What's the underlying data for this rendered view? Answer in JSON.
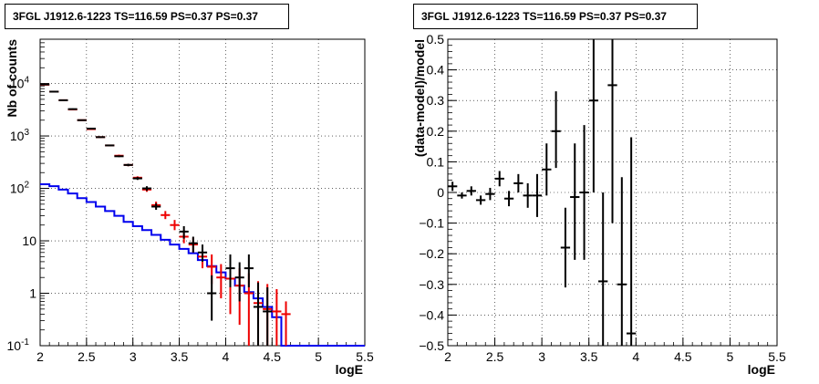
{
  "panels": [
    {
      "title": "3FGL J1912.6-1223 TS=116.59 PS=0.37 PS=0.37"
    },
    {
      "title": "3FGL J1912.6-1223 TS=116.59 PS=0.37 PS=0.37"
    }
  ],
  "chart_data": [
    {
      "type": "line",
      "title": "3FGL J1912.6-1223 TS=116.59 PS=0.37 PS=0.37",
      "xlabel": "logE",
      "ylabel": "Nb of counts",
      "xlim": [
        2,
        5.5
      ],
      "ylim": [
        0.1,
        70000
      ],
      "yscale": "log",
      "grid": true,
      "x_ticks": [
        "2",
        "2.5",
        "3",
        "3.5",
        "4",
        "4.5",
        "5",
        "5.5"
      ],
      "y_ticks": [
        {
          "value": 0.1,
          "label": "10-1",
          "base": "10",
          "exp": "-1"
        },
        {
          "value": 1,
          "label": "1",
          "base": "1",
          "exp": ""
        },
        {
          "value": 10,
          "label": "10",
          "base": "10",
          "exp": ""
        },
        {
          "value": 100,
          "label": "102",
          "base": "10",
          "exp": "2"
        },
        {
          "value": 1000,
          "label": "103",
          "base": "10",
          "exp": "3"
        },
        {
          "value": 10000,
          "label": "104",
          "base": "10",
          "exp": "4"
        }
      ],
      "series": [
        {
          "color": "#0000ee",
          "style": "step",
          "edges": [
            2.0,
            2.1,
            2.2,
            2.3,
            2.4,
            2.5,
            2.6,
            2.7,
            2.8,
            2.9,
            3.0,
            3.1,
            3.2,
            3.3,
            3.4,
            3.5,
            3.6,
            3.7,
            3.8,
            3.9,
            4.0,
            4.1,
            4.2,
            4.3,
            4.4,
            4.5,
            4.6,
            4.7,
            4.8,
            4.9,
            5.0,
            5.1,
            5.2,
            5.3,
            5.4,
            5.5
          ],
          "values": [
            120,
            110,
            95,
            80,
            65,
            55,
            45,
            37,
            30,
            23,
            19,
            16,
            13,
            10.5,
            8.5,
            7,
            5.8,
            4.3,
            3.3,
            2.5,
            1.9,
            1.4,
            1.05,
            0.8,
            0.55,
            0.35,
            0.1,
            0.1,
            0.1,
            0.1,
            0.1,
            0.1,
            0.1,
            0.1,
            0.1
          ]
        },
        {
          "color": "#ee0000",
          "style": "errorbar",
          "points": [
            {
              "x": 2.05,
              "y": 9500,
              "lo": 9300,
              "hi": 9700
            },
            {
              "x": 2.15,
              "y": 7000,
              "lo": 6850,
              "hi": 7150
            },
            {
              "x": 2.25,
              "y": 4800,
              "lo": 4700,
              "hi": 4900
            },
            {
              "x": 2.35,
              "y": 3200,
              "lo": 3100,
              "hi": 3300
            },
            {
              "x": 2.45,
              "y": 2000,
              "lo": 1950,
              "hi": 2050
            },
            {
              "x": 2.55,
              "y": 1350,
              "lo": 1300,
              "hi": 1400
            },
            {
              "x": 2.65,
              "y": 950,
              "lo": 920,
              "hi": 980
            },
            {
              "x": 2.75,
              "y": 660,
              "lo": 640,
              "hi": 680
            },
            {
              "x": 2.85,
              "y": 420,
              "lo": 400,
              "hi": 440
            },
            {
              "x": 2.95,
              "y": 280,
              "lo": 265,
              "hi": 295
            },
            {
              "x": 3.05,
              "y": 160,
              "lo": 150,
              "hi": 170
            },
            {
              "x": 3.15,
              "y": 95,
              "lo": 86,
              "hi": 104
            },
            {
              "x": 3.25,
              "y": 48,
              "lo": 42,
              "hi": 56
            },
            {
              "x": 3.35,
              "y": 31,
              "lo": 26,
              "hi": 37
            },
            {
              "x": 3.45,
              "y": 20,
              "lo": 16,
              "hi": 25
            },
            {
              "x": 3.55,
              "y": 12,
              "lo": 9,
              "hi": 16
            },
            {
              "x": 3.65,
              "y": 8.5,
              "lo": 6,
              "hi": 11.5
            },
            {
              "x": 3.75,
              "y": 5,
              "lo": 3,
              "hi": 7.5
            },
            {
              "x": 3.85,
              "y": 3.2,
              "lo": 1.5,
              "hi": 5.5
            },
            {
              "x": 3.95,
              "y": 2,
              "lo": 0.8,
              "hi": 3.6
            },
            {
              "x": 4.05,
              "y": 1.9,
              "lo": 0.4,
              "hi": 3.9
            },
            {
              "x": 4.15,
              "y": 1.4,
              "lo": 0.25,
              "hi": 3.0
            },
            {
              "x": 4.25,
              "y": 1.0,
              "lo": 0.1,
              "hi": 2.4
            },
            {
              "x": 4.35,
              "y": 0.65,
              "lo": 0.1,
              "hi": 1.7
            },
            {
              "x": 4.45,
              "y": 0.5,
              "lo": 0.1,
              "hi": 1.5
            },
            {
              "x": 4.55,
              "y": 0.45,
              "lo": 0.1,
              "hi": 1.2
            },
            {
              "x": 4.65,
              "y": 0.4,
              "lo": 0.1,
              "hi": 0.7
            }
          ]
        },
        {
          "color": "#000000",
          "style": "errorbar",
          "points": [
            {
              "x": 2.05,
              "y": 9600,
              "lo": 9400,
              "hi": 9800
            },
            {
              "x": 2.15,
              "y": 7000,
              "lo": 6850,
              "hi": 7150
            },
            {
              "x": 2.25,
              "y": 4800,
              "lo": 4700,
              "hi": 4900
            },
            {
              "x": 2.35,
              "y": 3250,
              "lo": 3150,
              "hi": 3350
            },
            {
              "x": 2.45,
              "y": 2000,
              "lo": 1950,
              "hi": 2050
            },
            {
              "x": 2.55,
              "y": 1380,
              "lo": 1330,
              "hi": 1430
            },
            {
              "x": 2.65,
              "y": 950,
              "lo": 920,
              "hi": 980
            },
            {
              "x": 2.75,
              "y": 660,
              "lo": 640,
              "hi": 680
            },
            {
              "x": 2.85,
              "y": 410,
              "lo": 395,
              "hi": 425
            },
            {
              "x": 2.95,
              "y": 280,
              "lo": 265,
              "hi": 295
            },
            {
              "x": 3.05,
              "y": 155,
              "lo": 145,
              "hi": 165
            },
            {
              "x": 3.15,
              "y": 100,
              "lo": 90,
              "hi": 110
            },
            {
              "x": 3.25,
              "y": 45,
              "lo": 39,
              "hi": 52
            },
            {
              "x": 3.55,
              "y": 15,
              "lo": 11,
              "hi": 19
            },
            {
              "x": 3.65,
              "y": 9,
              "lo": 6,
              "hi": 12
            },
            {
              "x": 3.75,
              "y": 6,
              "lo": 4,
              "hi": 8.5
            },
            {
              "x": 3.85,
              "y": 1,
              "lo": 0.3,
              "hi": 2.2
            },
            {
              "x": 4.05,
              "y": 3,
              "lo": 1.3,
              "hi": 5.5
            },
            {
              "x": 4.15,
              "y": 2,
              "lo": 0.7,
              "hi": 3.9
            },
            {
              "x": 4.25,
              "y": 3,
              "lo": 1.3,
              "hi": 5.5
            },
            {
              "x": 4.35,
              "y": 0.55,
              "lo": 0.1,
              "hi": 1.6
            },
            {
              "x": 4.45,
              "y": 0.45,
              "lo": 0.1,
              "hi": 1.3
            }
          ]
        }
      ]
    },
    {
      "type": "scatter",
      "title": "3FGL J1912.6-1223 TS=116.59 PS=0.37 PS=0.37",
      "xlabel": "logE",
      "ylabel": "(data-model)/model",
      "xlim": [
        2,
        5.5
      ],
      "ylim": [
        -0.5,
        0.5
      ],
      "grid": true,
      "x_ticks": [
        "2",
        "2.5",
        "3",
        "3.5",
        "4",
        "4.5",
        "5",
        "5.5"
      ],
      "y_ticks": [
        "-0.5",
        "-0.4",
        "-0.3",
        "-0.2",
        "-0.1",
        "0",
        "0.1",
        "0.2",
        "0.3",
        "0.4",
        "0.5"
      ],
      "series": [
        {
          "color": "#000000",
          "style": "errorbar",
          "points": [
            {
              "x": 2.05,
              "y": 0.02,
              "lo": 0.005,
              "hi": 0.035
            },
            {
              "x": 2.15,
              "y": -0.01,
              "lo": -0.02,
              "hi": 0.0
            },
            {
              "x": 2.25,
              "y": 0.005,
              "lo": -0.01,
              "hi": 0.02
            },
            {
              "x": 2.35,
              "y": -0.025,
              "lo": -0.04,
              "hi": -0.01
            },
            {
              "x": 2.45,
              "y": -0.005,
              "lo": -0.025,
              "hi": 0.015
            },
            {
              "x": 2.55,
              "y": 0.045,
              "lo": 0.02,
              "hi": 0.07
            },
            {
              "x": 2.65,
              "y": -0.02,
              "lo": -0.045,
              "hi": 0.005
            },
            {
              "x": 2.75,
              "y": 0.03,
              "lo": 0.0,
              "hi": 0.06
            },
            {
              "x": 2.85,
              "y": -0.01,
              "lo": -0.05,
              "hi": 0.03
            },
            {
              "x": 2.95,
              "y": -0.01,
              "lo": -0.08,
              "hi": 0.06
            },
            {
              "x": 3.05,
              "y": 0.075,
              "lo": -0.01,
              "hi": 0.16
            },
            {
              "x": 3.15,
              "y": 0.2,
              "lo": 0.08,
              "hi": 0.33
            },
            {
              "x": 3.25,
              "y": -0.18,
              "lo": -0.31,
              "hi": -0.05
            },
            {
              "x": 3.35,
              "y": -0.015,
              "lo": -0.22,
              "hi": 0.16
            },
            {
              "x": 3.45,
              "y": 0.0,
              "lo": -0.22,
              "hi": 0.22
            },
            {
              "x": 3.55,
              "y": 0.3,
              "lo": 0.0,
              "hi": 0.5
            },
            {
              "x": 3.65,
              "y": -0.29,
              "lo": -0.5,
              "hi": 0.0
            },
            {
              "x": 3.75,
              "y": 0.35,
              "lo": -0.1,
              "hi": 0.5
            },
            {
              "x": 3.85,
              "y": -0.3,
              "lo": -0.5,
              "hi": 0.05
            },
            {
              "x": 3.95,
              "y": -0.46,
              "lo": -0.5,
              "hi": 0.18
            }
          ]
        }
      ]
    }
  ]
}
